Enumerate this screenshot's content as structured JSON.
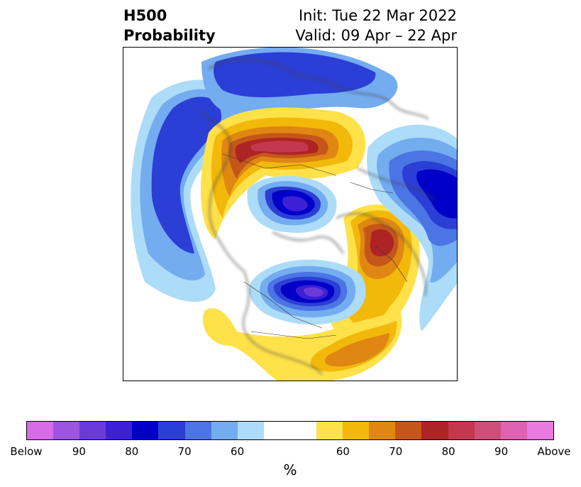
{
  "title": {
    "left_line1": "H500",
    "left_line2": "Probability",
    "right_line1": "Init: Tue 22 Mar 2022",
    "right_line2": "Valid: 09 Apr – 22 Apr"
  },
  "colorbar": {
    "colors": [
      "#d86be8",
      "#9b55e0",
      "#6a3ad8",
      "#3d1fd4",
      "#0000c8",
      "#2b3ed6",
      "#4b74e4",
      "#74acf0",
      "#acdcf8",
      "#ffffff",
      "#ffffff",
      "#ffe14a",
      "#f2b80a",
      "#df8712",
      "#c5561a",
      "#ae2424",
      "#c2384e",
      "#ce4f7a",
      "#df62b2",
      "#e87ae0"
    ],
    "tick_labels": [
      "Below",
      "90",
      "80",
      "70",
      "60",
      "",
      "60",
      "70",
      "80",
      "90",
      "Above"
    ],
    "unit": "%"
  }
}
